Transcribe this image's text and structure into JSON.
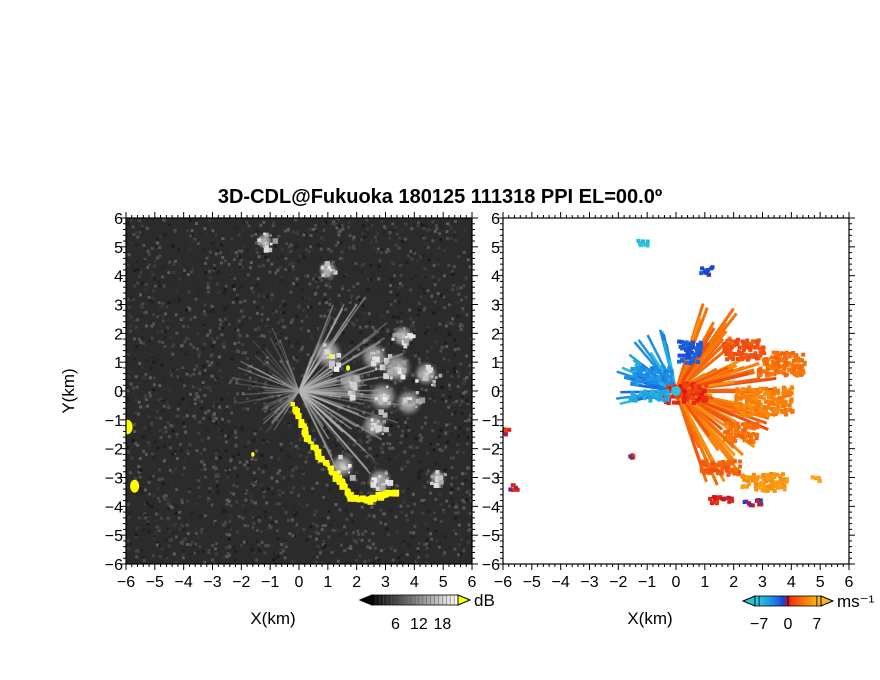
{
  "chart_data": {
    "title": "3D-CDL@Fukuoka 180125 111318 PPI EL=00.0º",
    "panels": [
      {
        "type": "heatmap",
        "name": "snr",
        "xlabel": "X(km)",
        "ylabel": "Y(km)",
        "xlim": [
          -6,
          6
        ],
        "ylim": [
          -6,
          6
        ],
        "xticks": [
          "−6",
          "−5",
          "−4",
          "−3",
          "−2",
          "−1",
          "0",
          "1",
          "2",
          "3",
          "4",
          "5",
          "6"
        ],
        "yticks": [
          "−6",
          "−5",
          "−4",
          "−3",
          "−2",
          "−1",
          "0",
          "1",
          "2",
          "3",
          "4",
          "5",
          "6"
        ],
        "background": "#2b2b2b",
        "highlight_color": "#ffff00",
        "colorbar": {
          "unit": "dB",
          "ticks": [
            6,
            12,
            18
          ],
          "tick_labels": [
            "6",
            "12",
            "18"
          ]
        },
        "echo_cells": [
          {
            "x": 1.0,
            "y": 1.3,
            "r": 0.55
          },
          {
            "x": 2.6,
            "y": 1.2,
            "r": 0.5
          },
          {
            "x": 3.4,
            "y": 0.8,
            "r": 0.55
          },
          {
            "x": 2.9,
            "y": -0.2,
            "r": 0.55
          },
          {
            "x": 3.8,
            "y": -0.4,
            "r": 0.5
          },
          {
            "x": 4.4,
            "y": 0.6,
            "r": 0.45
          },
          {
            "x": 2.6,
            "y": -1.2,
            "r": 0.45
          },
          {
            "x": 1.5,
            "y": -2.6,
            "r": 0.45
          },
          {
            "x": 2.8,
            "y": -3.1,
            "r": 0.45
          },
          {
            "x": 4.8,
            "y": -3.0,
            "r": 0.3
          },
          {
            "x": 1.0,
            "y": 4.2,
            "r": 0.35
          },
          {
            "x": -1.2,
            "y": 5.2,
            "r": 0.3
          },
          {
            "x": 3.6,
            "y": 1.9,
            "r": 0.4
          },
          {
            "x": 1.8,
            "y": 0.3,
            "r": 0.45
          }
        ],
        "highlight_path": [
          {
            "x": -0.2,
            "y": -0.5
          },
          {
            "x": 0.3,
            "y": -1.6
          },
          {
            "x": 0.9,
            "y": -2.5
          },
          {
            "x": 1.5,
            "y": -3.2
          },
          {
            "x": 1.8,
            "y": -3.7
          },
          {
            "x": 2.4,
            "y": -3.8
          },
          {
            "x": 2.9,
            "y": -3.6
          },
          {
            "x": 3.4,
            "y": -3.5
          }
        ],
        "highlight_blobs": [
          {
            "x": -5.95,
            "y": -1.25,
            "r": 0.18
          },
          {
            "x": -5.7,
            "y": -3.3,
            "r": 0.16
          },
          {
            "x": 1.7,
            "y": 0.8,
            "r": 0.07
          },
          {
            "x": 1.1,
            "y": 1.2,
            "r": 0.06
          },
          {
            "x": -1.6,
            "y": -2.2,
            "r": 0.06
          }
        ]
      },
      {
        "type": "heatmap",
        "name": "doppler_velocity",
        "xlabel": "X(km)",
        "xlim": [
          -6,
          6
        ],
        "ylim": [
          -6,
          6
        ],
        "xticks": [
          "−6",
          "−5",
          "−4",
          "−3",
          "−2",
          "−1",
          "0",
          "1",
          "2",
          "3",
          "4",
          "5",
          "6"
        ],
        "yticks": [
          "−6",
          "−5",
          "−4",
          "−3",
          "−2",
          "−1",
          "0",
          "1",
          "2",
          "3",
          "4",
          "5",
          "6"
        ],
        "background": "#ffffff",
        "colorbar": {
          "unit": "ms⁻¹",
          "ticks": [
            -7,
            0,
            7
          ],
          "tick_labels": [
            "−7",
            "0",
            "7"
          ]
        },
        "palette": [
          "#2ac4d8",
          "#1c84e8",
          "#1840d0",
          "#e01010",
          "#f04010",
          "#f87808",
          "#f8b418"
        ],
        "palette_positions": [
          -7,
          -3.5,
          -1,
          0,
          1,
          4,
          7
        ],
        "regions": [
          {
            "x": 0.25,
            "y": 0.0,
            "w": 1.5,
            "h": 0.7,
            "v": 0.7
          },
          {
            "x": 2.3,
            "y": 1.5,
            "w": 1.4,
            "h": 0.7,
            "v": 2.0
          },
          {
            "x": 3.6,
            "y": 1.0,
            "w": 1.6,
            "h": 0.8,
            "v": 3.5
          },
          {
            "x": 3.0,
            "y": -0.3,
            "w": 2.0,
            "h": 1.0,
            "v": 4.5
          },
          {
            "x": 2.2,
            "y": -1.4,
            "w": 1.2,
            "h": 0.7,
            "v": 3.5
          },
          {
            "x": 1.5,
            "y": -2.6,
            "w": 1.4,
            "h": 0.5,
            "v": 2.5
          },
          {
            "x": 3.0,
            "y": -3.1,
            "w": 1.6,
            "h": 0.6,
            "v": 5.5
          },
          {
            "x": 4.8,
            "y": -3.0,
            "w": 0.3,
            "h": 0.2,
            "v": 6.0
          },
          {
            "x": 0.4,
            "y": 1.4,
            "w": 0.8,
            "h": 0.8,
            "v": -2.0
          },
          {
            "x": 1.0,
            "y": 4.2,
            "w": 0.4,
            "h": 0.35,
            "v": -1.5
          },
          {
            "x": -1.2,
            "y": 5.2,
            "w": 0.4,
            "h": 0.2,
            "v": -6.5
          },
          {
            "x": -0.9,
            "y": 0.6,
            "w": 1.4,
            "h": 0.55,
            "v": -4.0
          },
          {
            "x": -1.0,
            "y": -0.1,
            "w": 1.3,
            "h": 0.35,
            "v": -5.5
          },
          {
            "x": 1.5,
            "y": -3.7,
            "w": 0.9,
            "h": 0.25,
            "v": 0.3
          },
          {
            "x": 2.6,
            "y": -3.8,
            "w": 0.6,
            "h": 0.2,
            "v": -0.5
          },
          {
            "x": -5.95,
            "y": -1.3,
            "w": 0.2,
            "h": 0.35,
            "v": 0.2
          },
          {
            "x": -5.7,
            "y": -3.3,
            "w": 0.3,
            "h": 0.25,
            "v": -0.2
          },
          {
            "x": -1.6,
            "y": -2.2,
            "w": 0.12,
            "h": 0.1,
            "v": 0.0
          }
        ]
      }
    ]
  }
}
